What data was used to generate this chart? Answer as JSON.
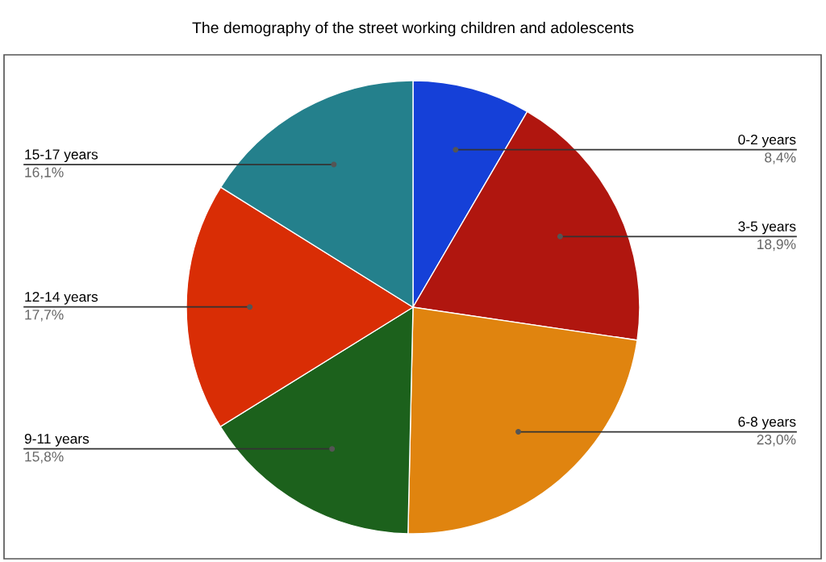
{
  "chart_data": {
    "type": "pie",
    "title": "The demography of the street working children and adolescents",
    "categories": [
      "0-2 years",
      "3-5 years",
      "6-8 years",
      "9-11 years",
      "12-14 years",
      "15-17 years"
    ],
    "values": [
      8.4,
      18.9,
      23.0,
      15.8,
      17.7,
      16.1
    ],
    "value_labels": [
      "8,4%",
      "18,9%",
      "23,0%",
      "15,8%",
      "17,7%",
      "16,1%"
    ],
    "colors": [
      "#1540d8",
      "#b0160f",
      "#e0840f",
      "#1c611c",
      "#d92d05",
      "#24808c"
    ],
    "legend": false
  }
}
